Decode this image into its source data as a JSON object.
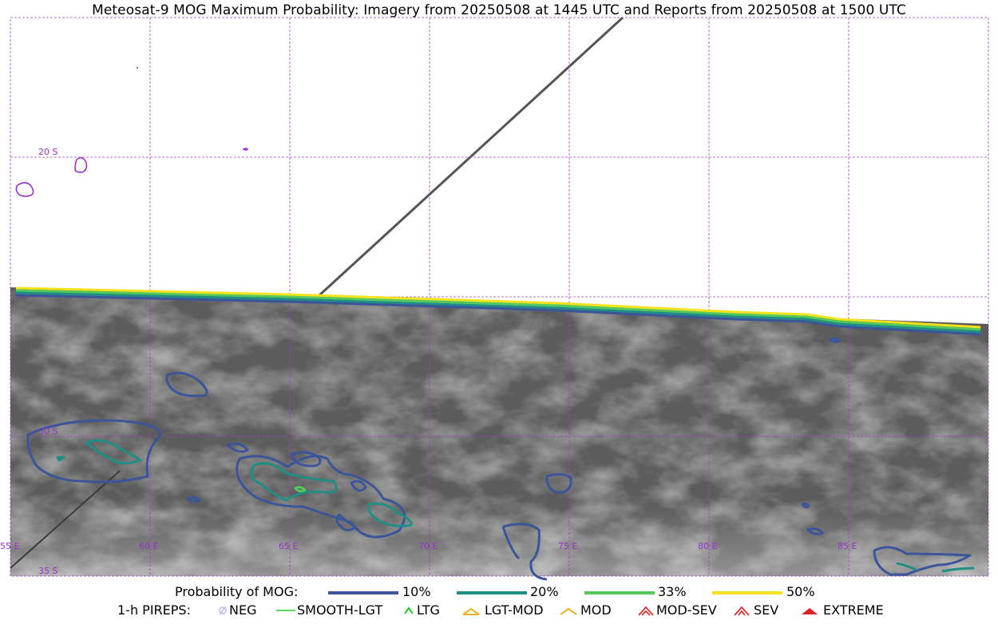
{
  "title": "Meteosat-9 MOG Maximum Probability: Imagery from 20250508 at 1445 UTC and Reports from 20250508 at 1500 UTC",
  "map": {
    "lat_labels": [
      "20 S",
      "30 S",
      "35 S"
    ],
    "lon_labels": [
      "55 E",
      "60 E",
      "65 E",
      "70 E",
      "75 E",
      "80 E",
      "85 E"
    ]
  },
  "colors": {
    "p10": "#3a5599",
    "p20": "#1f8f86",
    "p33": "#55c85a",
    "p50": "#f5e21a",
    "grid": "#a040c0",
    "coast": "#9932cc"
  },
  "legend": {
    "prob_title": "Probability of MOG:",
    "prob_items": [
      "10%",
      "20%",
      "33%",
      "50%"
    ],
    "pirep_title": "1-h PIREPS:",
    "pirep_items": [
      {
        "label": "NEG",
        "icon": "neg-circle-icon",
        "color": "#b8b8f0"
      },
      {
        "label": "SMOOTH-LGT",
        "icon": "smooth-line-icon",
        "color": "#2ad12a"
      },
      {
        "label": "LTG",
        "icon": "ltg-caret-icon",
        "color": "#22cc22"
      },
      {
        "label": "LGT-MOD",
        "icon": "lgt-mod-hat-icon",
        "color": "#f0b020"
      },
      {
        "label": "MOD",
        "icon": "mod-caret-icon",
        "color": "#f0b020"
      },
      {
        "label": "MOD-SEV",
        "icon": "mod-sev-icon",
        "color": "#e03030"
      },
      {
        "label": "SEV",
        "icon": "sev-icon",
        "color": "#e03030"
      },
      {
        "label": "EXTREME",
        "icon": "extreme-icon",
        "color": "#e02020"
      }
    ]
  }
}
